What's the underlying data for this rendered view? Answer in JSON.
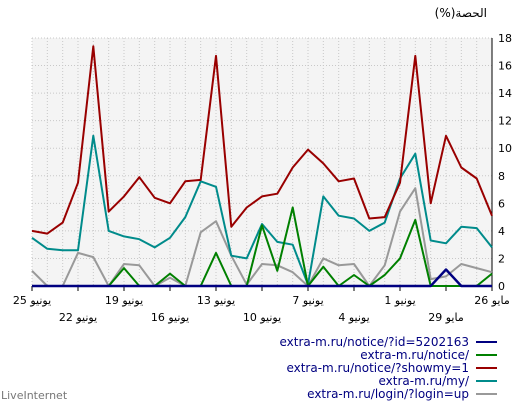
{
  "chart_data": {
    "type": "line",
    "ylabel": "(%)الحصة",
    "ylim": [
      0,
      18
    ],
    "yticks": [
      0,
      2,
      4,
      6,
      8,
      10,
      12,
      14,
      16,
      18
    ],
    "grid": true,
    "x_tick_labels": [
      {
        "index": 0,
        "label": "25 يونيو",
        "row": 1
      },
      {
        "index": 3,
        "label": "22 يونيو",
        "row": 2
      },
      {
        "index": 6,
        "label": "19 يونيو",
        "row": 1
      },
      {
        "index": 9,
        "label": "16 يونيو",
        "row": 2
      },
      {
        "index": 12,
        "label": "13 يونيو",
        "row": 1
      },
      {
        "index": 15,
        "label": "10 يونيو",
        "row": 2
      },
      {
        "index": 18,
        "label": "7 يونيو",
        "row": 1
      },
      {
        "index": 21,
        "label": "4 يونيو",
        "row": 2
      },
      {
        "index": 24,
        "label": "1 يونيو",
        "row": 1
      },
      {
        "index": 27,
        "label": "29 مايو",
        "row": 2
      },
      {
        "index": 30,
        "label": "26 مايو",
        "row": 1
      }
    ],
    "series": [
      {
        "name": "extra-m.ru/notice/?id=5202163",
        "color": "#000080",
        "values": [
          0,
          0,
          0,
          0,
          0,
          0,
          0,
          0,
          0,
          0,
          0,
          0,
          0,
          0,
          0,
          0,
          0,
          0,
          0,
          0,
          0,
          0,
          0,
          0,
          0,
          0,
          0,
          1.2,
          0,
          0,
          0
        ]
      },
      {
        "name": "extra-m.ru/notice/",
        "color": "#008000",
        "values": [
          0,
          0,
          0,
          0,
          0,
          0,
          1.3,
          0,
          0,
          0.9,
          0,
          0,
          2.4,
          0,
          0,
          4.4,
          1.1,
          5.7,
          0,
          1.4,
          0,
          0.8,
          0,
          0.8,
          2.0,
          4.8,
          0,
          0,
          0,
          0,
          0.9
        ]
      },
      {
        "name": "extra-m.ru/notice/?showmy=1",
        "color": "#990000",
        "values": [
          4.0,
          3.8,
          4.6,
          7.5,
          17.4,
          5.4,
          6.5,
          7.9,
          6.4,
          6.0,
          7.6,
          7.7,
          16.7,
          4.3,
          5.7,
          6.5,
          6.7,
          8.6,
          9.9,
          8.9,
          7.6,
          7.8,
          4.9,
          5.0,
          7.5,
          16.7,
          6.0,
          10.9,
          8.6,
          7.8,
          5.1
        ]
      },
      {
        "name": "extra-m.ru/my/",
        "color": "#008b8b",
        "values": [
          3.5,
          2.7,
          2.6,
          2.6,
          10.9,
          4.0,
          3.6,
          3.4,
          2.8,
          3.5,
          5.0,
          7.6,
          7.2,
          2.2,
          2.0,
          4.5,
          3.2,
          3.0,
          0.1,
          6.5,
          5.1,
          4.9,
          4.0,
          4.6,
          7.8,
          9.6,
          3.3,
          3.1,
          4.3,
          4.2,
          2.8
        ]
      },
      {
        "name": "extra-m.ru/login/?login=up",
        "color": "#999999",
        "values": [
          1.1,
          0,
          0,
          2.4,
          2.1,
          0,
          1.6,
          1.5,
          0,
          0.6,
          0,
          3.9,
          4.7,
          2.2,
          0.1,
          1.6,
          1.5,
          1.0,
          0,
          2.0,
          1.5,
          1.6,
          0,
          1.5,
          5.4,
          7.1,
          0.5,
          0.7,
          1.6,
          1.3,
          1.0
        ]
      }
    ]
  },
  "legend": [
    {
      "label": "extra-m.ru/notice/?id=5202163",
      "color": "#000080"
    },
    {
      "label": "extra-m.ru/notice/",
      "color": "#008000"
    },
    {
      "label": "extra-m.ru/notice/?showmy=1",
      "color": "#990000"
    },
    {
      "label": "extra-m.ru/my/",
      "color": "#008b8b"
    },
    {
      "label": "extra-m.ru/login/?login=up",
      "color": "#999999"
    }
  ],
  "watermark": "LiveInternet"
}
